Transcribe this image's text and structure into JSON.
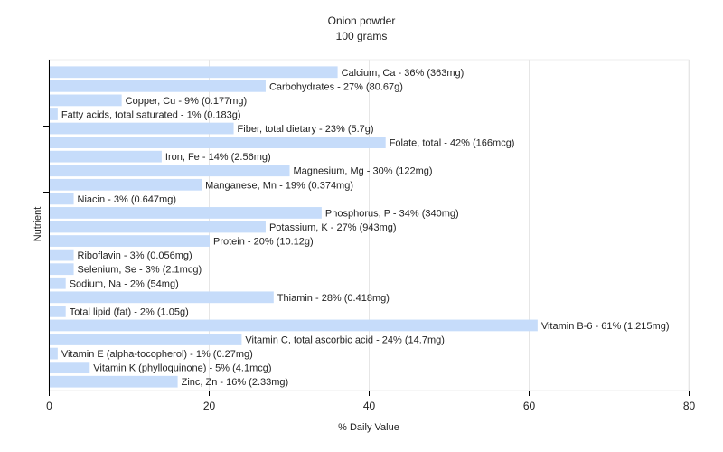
{
  "chart_data": {
    "type": "bar",
    "orientation": "horizontal",
    "title": "Onion powder",
    "subtitle": "100 grams",
    "xlabel": "% Daily Value",
    "ylabel": "Nutrient",
    "xlim": [
      0,
      80
    ],
    "xticks": [
      0,
      20,
      40,
      60,
      80
    ],
    "grid": true,
    "bar_color": "#c6dcfa",
    "bars": [
      {
        "label": "Calcium, Ca - 36% (363mg)",
        "value": 36
      },
      {
        "label": "Carbohydrates - 27% (80.67g)",
        "value": 27
      },
      {
        "label": "Copper, Cu - 9% (0.177mg)",
        "value": 9
      },
      {
        "label": "Fatty acids, total saturated - 1% (0.183g)",
        "value": 1
      },
      {
        "label": "Fiber, total dietary - 23% (5.7g)",
        "value": 23
      },
      {
        "label": "Folate, total - 42% (166mcg)",
        "value": 42
      },
      {
        "label": "Iron, Fe - 14% (2.56mg)",
        "value": 14
      },
      {
        "label": "Magnesium, Mg - 30% (122mg)",
        "value": 30
      },
      {
        "label": "Manganese, Mn - 19% (0.374mg)",
        "value": 19
      },
      {
        "label": "Niacin - 3% (0.647mg)",
        "value": 3
      },
      {
        "label": "Phosphorus, P - 34% (340mg)",
        "value": 34
      },
      {
        "label": "Potassium, K - 27% (943mg)",
        "value": 27
      },
      {
        "label": "Protein - 20% (10.12g)",
        "value": 20
      },
      {
        "label": "Riboflavin - 3% (0.056mg)",
        "value": 3
      },
      {
        "label": "Selenium, Se - 3% (2.1mcg)",
        "value": 3
      },
      {
        "label": "Sodium, Na - 2% (54mg)",
        "value": 2
      },
      {
        "label": "Thiamin - 28% (0.418mg)",
        "value": 28
      },
      {
        "label": "Total lipid (fat) - 2% (1.05g)",
        "value": 2
      },
      {
        "label": "Vitamin B-6 - 61% (1.215mg)",
        "value": 61
      },
      {
        "label": "Vitamin C, total ascorbic acid - 24% (14.7mg)",
        "value": 24
      },
      {
        "label": "Vitamin E (alpha-tocopherol) - 1% (0.27mg)",
        "value": 1
      },
      {
        "label": "Vitamin K (phylloquinone) - 5% (4.1mcg)",
        "value": 5
      },
      {
        "label": "Zinc, Zn - 16% (2.33mg)",
        "value": 16
      }
    ]
  }
}
